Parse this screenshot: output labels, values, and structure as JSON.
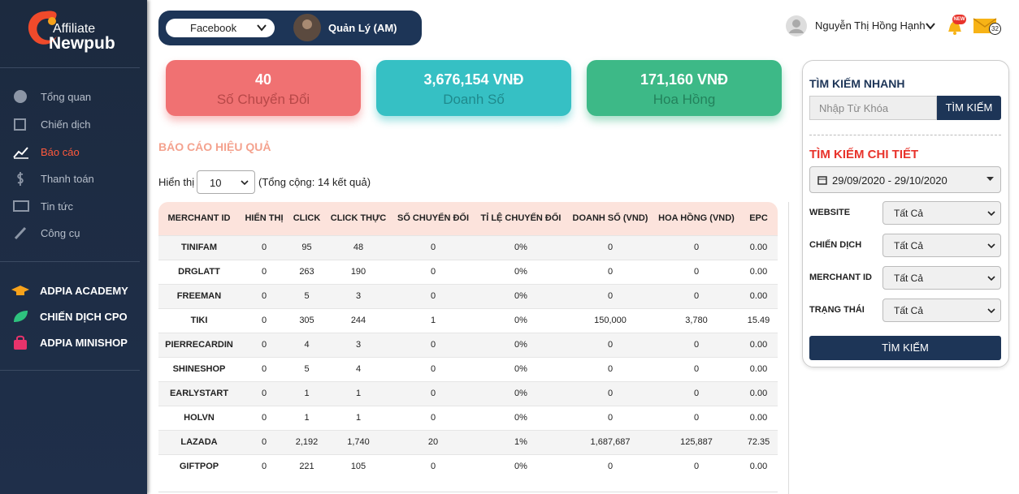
{
  "sidebar": {
    "logo_top": "Affiliate",
    "logo_bottom": "Newpub",
    "menu": [
      "Tổng quan",
      "Chiến dịch",
      "Báo cáo",
      "Thanh toán",
      "Tin tức",
      "Công cụ"
    ],
    "extras": [
      "ADPIA ACADEMY",
      "CHIẾN DỊCH CPO",
      "ADPIA MINISHOP"
    ]
  },
  "topbar": {
    "platform": "Facebook",
    "role": "Quản Lý (AM)",
    "user": "Nguyễn Thị Hồng Hạnh",
    "badge_new": "NEW",
    "mail_count": "32"
  },
  "stats": [
    {
      "value": "40",
      "label": "Số Chuyển Đổi"
    },
    {
      "value": "3,676,154 VNĐ",
      "label": "Doanh Số"
    },
    {
      "value": "171,160 VNĐ",
      "label": "Hoa Hồng"
    }
  ],
  "report": {
    "title": "BÁO CÁO HIỆU QUẢ",
    "show_label": "Hiển thị",
    "page_size": "10",
    "total": "(Tổng cộng: 14 kết quả)",
    "columns": [
      "MERCHANT ID",
      "HIỂN THỊ",
      "CLICK",
      "CLICK THỰC",
      "SỐ CHUYỂN ĐỔI",
      "TỈ LỆ CHUYỂN ĐỔI",
      "DOANH SỐ (VND)",
      "HOA HỒNG (VND)",
      "EPC"
    ],
    "rows": [
      [
        "TINIFAM",
        "0",
        "95",
        "48",
        "0",
        "0%",
        "0",
        "0",
        "0.00"
      ],
      [
        "DRGLATT",
        "0",
        "263",
        "190",
        "0",
        "0%",
        "0",
        "0",
        "0.00"
      ],
      [
        "FREEMAN",
        "0",
        "5",
        "3",
        "0",
        "0%",
        "0",
        "0",
        "0.00"
      ],
      [
        "TIKI",
        "0",
        "305",
        "244",
        "1",
        "0%",
        "150,000",
        "3,780",
        "15.49"
      ],
      [
        "PIERRECARDIN",
        "0",
        "4",
        "3",
        "0",
        "0%",
        "0",
        "0",
        "0.00"
      ],
      [
        "SHINESHOP",
        "0",
        "5",
        "4",
        "0",
        "0%",
        "0",
        "0",
        "0.00"
      ],
      [
        "EARLYSTART",
        "0",
        "1",
        "1",
        "0",
        "0%",
        "0",
        "0",
        "0.00"
      ],
      [
        "HOLVN",
        "0",
        "1",
        "1",
        "0",
        "0%",
        "0",
        "0",
        "0.00"
      ],
      [
        "LAZADA",
        "0",
        "2,192",
        "1,740",
        "20",
        "1%",
        "1,687,687",
        "125,887",
        "72.35"
      ],
      [
        "GIFTPOP",
        "0",
        "221",
        "105",
        "0",
        "0%",
        "0",
        "0",
        "0.00"
      ]
    ]
  },
  "search": {
    "quick_title": "TÌM KIẾM NHANH",
    "keyword_placeholder": "Nhập Từ Khóa",
    "quick_button": "TÌM KIẾM",
    "detail_title": "TÌM KIẾM CHI TIẾT",
    "date_range": "29/09/2020 - 29/10/2020",
    "filters": [
      {
        "label": "WEBSITE",
        "value": "Tất Cả"
      },
      {
        "label": "CHIẾN DỊCH",
        "value": "Tất Cả"
      },
      {
        "label": "MERCHANT ID",
        "value": "Tất Cả"
      },
      {
        "label": "TRẠNG THÁI",
        "value": "Tất Cả"
      }
    ],
    "button": "TÌM KIẾM"
  }
}
